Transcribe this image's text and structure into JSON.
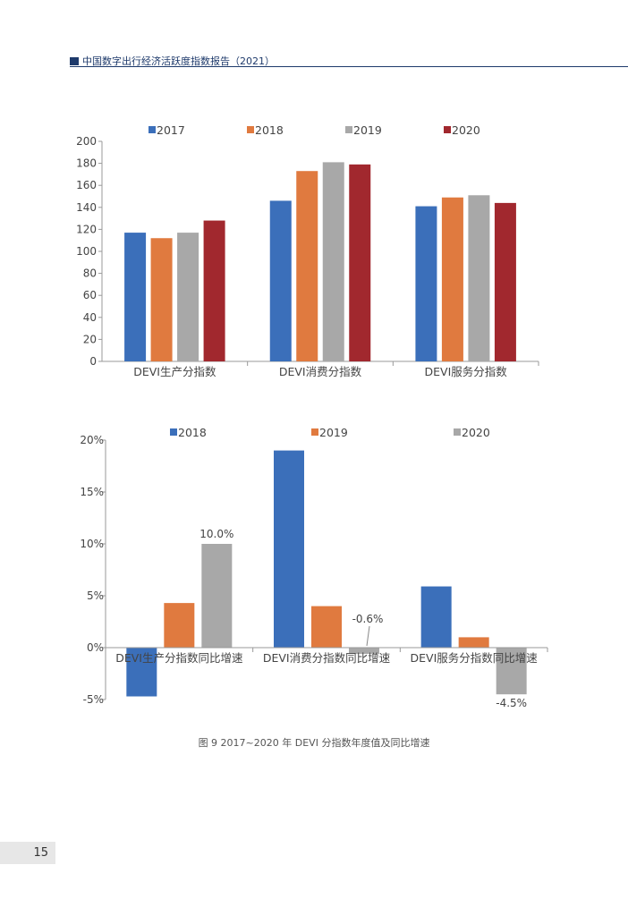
{
  "header": {
    "title": "中国数字出行经济活跃度指数报告（2021）"
  },
  "caption": "图 9 2017~2020 年 DEVI 分指数年度值及同比增速",
  "page_number": "15",
  "colors": {
    "blue": "#3b6fba",
    "orange": "#e07a3f",
    "gray": "#a8a8a8",
    "darkred": "#a1282e",
    "header_navy": "#1e3a6b"
  },
  "chart_data": [
    {
      "type": "bar",
      "categories": [
        "DEVI生产分指数",
        "DEVI消费分指数",
        "DEVI服务分指数"
      ],
      "series": [
        {
          "name": "2017",
          "values": [
            117,
            146,
            141
          ]
        },
        {
          "name": "2018",
          "values": [
            112,
            173,
            149
          ]
        },
        {
          "name": "2019",
          "values": [
            117,
            181,
            151
          ]
        },
        {
          "name": "2020",
          "values": [
            128,
            179,
            144
          ]
        }
      ],
      "ylim": [
        0,
        200
      ],
      "yticks": [
        "0",
        "20",
        "40",
        "60",
        "80",
        "100",
        "120",
        "140",
        "160",
        "180",
        "200"
      ],
      "legend": "top"
    },
    {
      "type": "bar",
      "categories": [
        "DEVI生产分指数同比增速",
        "DEVI消费分指数同比增速",
        "DEVI服务分指数同比增速"
      ],
      "series": [
        {
          "name": "2018",
          "values": [
            -4.7,
            19.0,
            5.9
          ]
        },
        {
          "name": "2019",
          "values": [
            4.3,
            4.0,
            1.0
          ]
        },
        {
          "name": "2020",
          "values": [
            10.0,
            -0.6,
            -4.5
          ]
        }
      ],
      "ylim": [
        -5,
        20
      ],
      "yticks": [
        "-5%",
        "0%",
        "5%",
        "10%",
        "15%",
        "20%"
      ],
      "data_labels": [
        {
          "series": 2,
          "category": 0,
          "text": "10.0%"
        },
        {
          "series": 2,
          "category": 1,
          "text": "-0.6%"
        },
        {
          "series": 2,
          "category": 2,
          "text": "-4.5%"
        }
      ],
      "legend": "top"
    }
  ]
}
